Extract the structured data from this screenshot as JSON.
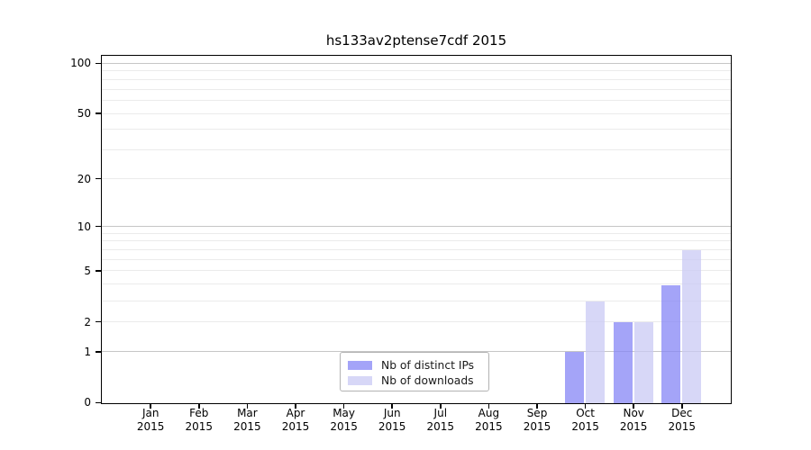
{
  "chart_data": {
    "type": "bar",
    "title": "hs133av2ptense7cdf 2015",
    "categories": [
      "Jan",
      "Feb",
      "Mar",
      "Apr",
      "May",
      "Jun",
      "Jul",
      "Aug",
      "Sep",
      "Oct",
      "Nov",
      "Dec"
    ],
    "category_second_line": "2015",
    "series": [
      {
        "name": "Nb of distinct IPs",
        "color": "rgba(133,133,245,0.75)",
        "values": [
          0,
          0,
          0,
          0,
          0,
          0,
          0,
          0,
          0,
          1,
          2,
          4
        ]
      },
      {
        "name": "Nb of downloads",
        "color": "rgba(202,202,244,0.75)",
        "values": [
          0,
          0,
          0,
          0,
          0,
          0,
          0,
          0,
          0,
          3,
          2,
          7
        ]
      }
    ],
    "y_axis": {
      "scale": "log1p",
      "ylim": [
        0,
        110
      ],
      "labeled_ticks": [
        0,
        1,
        2,
        5,
        10,
        20,
        50,
        100
      ],
      "major_gridlines": [
        1,
        10,
        100
      ],
      "minor_gridlines": [
        2,
        3,
        4,
        5,
        6,
        7,
        8,
        9,
        20,
        30,
        40,
        50,
        60,
        70,
        80,
        90
      ],
      "major_grid_color": "#c6c6c6",
      "minor_grid_color": "#ebebeb"
    },
    "legend": {
      "position": "bottom-center"
    },
    "grid": true
  }
}
